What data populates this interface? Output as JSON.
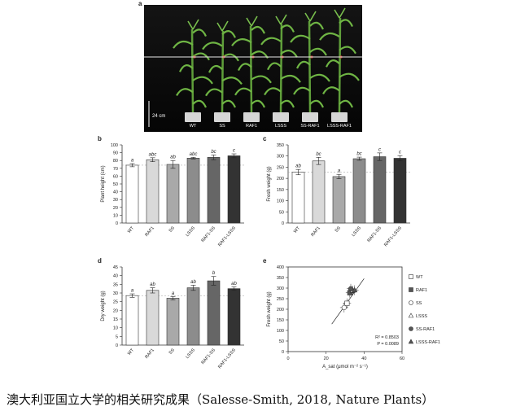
{
  "panel_letters": {
    "a": "a",
    "b": "b",
    "c": "c",
    "d": "d",
    "e": "e"
  },
  "photo": {
    "scale_label": "24 cm",
    "plant_labels": [
      "WT",
      "SS",
      "RAF1",
      "LSSS",
      "SS-RAF1",
      "LSSS-RAF1"
    ]
  },
  "chart_data": [
    {
      "panel": "b",
      "type": "bar",
      "categories": [
        "WT",
        "RAF1",
        "SS",
        "LSSS",
        "RAF1-SS",
        "RAF1-LSSS"
      ],
      "values": [
        74,
        81,
        75,
        83,
        84,
        86
      ],
      "errors": [
        2,
        2.5,
        5,
        1,
        3,
        2.5
      ],
      "letters": [
        "a",
        "abc",
        "ab",
        "abc",
        "bc",
        "c"
      ],
      "ylabel": "Plant height (cm)",
      "ylim": [
        0,
        100
      ],
      "yticks": [
        0,
        10,
        20,
        30,
        40,
        50,
        60,
        70,
        80,
        90,
        100
      ],
      "reference_line": 74,
      "colors": [
        "#ffffff",
        "#d9d9d9",
        "#a9a9a9",
        "#8c8c8c",
        "#666666",
        "#333333"
      ]
    },
    {
      "panel": "c",
      "type": "bar",
      "categories": [
        "WT",
        "RAF1",
        "SS",
        "LSSS",
        "RAF1-SS",
        "RAF1-LSSS"
      ],
      "values": [
        228,
        278,
        208,
        288,
        297,
        290
      ],
      "errors": [
        12,
        16,
        10,
        7,
        17,
        12
      ],
      "letters": [
        "ab",
        "bc",
        "a",
        "bc",
        "c",
        "c"
      ],
      "ylabel": "Fresh weight (g)",
      "ylim": [
        0,
        350
      ],
      "yticks": [
        0,
        50,
        100,
        150,
        200,
        250,
        300,
        350
      ],
      "reference_line": 228,
      "colors": [
        "#ffffff",
        "#d9d9d9",
        "#a9a9a9",
        "#8c8c8c",
        "#666666",
        "#333333"
      ]
    },
    {
      "panel": "d",
      "type": "bar",
      "categories": [
        "WT",
        "RAF1",
        "SS",
        "LSSS",
        "RAF1-SS",
        "RAF1-LSSS"
      ],
      "values": [
        28.5,
        31.5,
        27,
        33,
        37,
        32.5
      ],
      "errors": [
        1,
        1.5,
        1,
        1.5,
        2.5,
        1
      ],
      "letters": [
        "a",
        "ab",
        "a",
        "ab",
        "b",
        "ab"
      ],
      "ylabel": "Dry weight (g)",
      "ylim": [
        0,
        45
      ],
      "yticks": [
        0,
        5,
        10,
        15,
        20,
        25,
        30,
        35,
        40,
        45
      ],
      "reference_line": 28.5,
      "colors": [
        "#ffffff",
        "#d9d9d9",
        "#a9a9a9",
        "#8c8c8c",
        "#666666",
        "#333333"
      ]
    },
    {
      "panel": "e",
      "type": "scatter",
      "xlabel": "A_sat (μmol m⁻² s⁻¹)",
      "ylabel": "Fresh weight (g)",
      "xlim": [
        0,
        60
      ],
      "ylim": [
        0,
        400
      ],
      "xticks": [
        0,
        20,
        40,
        60
      ],
      "yticks": [
        0,
        50,
        100,
        150,
        200,
        250,
        300,
        350,
        400
      ],
      "points": [
        {
          "name": "WT",
          "marker": "square-open",
          "x": 31,
          "y": 228
        },
        {
          "name": "RAF1",
          "marker": "square-filled",
          "x": 32.5,
          "y": 278
        },
        {
          "name": "SS",
          "marker": "circle-open",
          "x": 29.5,
          "y": 208
        },
        {
          "name": "LSSS",
          "marker": "triangle-open",
          "x": 34,
          "y": 288
        },
        {
          "name": "SS-RAF1",
          "marker": "circle-filled",
          "x": 33,
          "y": 297
        },
        {
          "name": "LSSS-RAF1",
          "marker": "triangle-filled",
          "x": 35,
          "y": 290
        }
      ],
      "fit_line": {
        "x": [
          23,
          40
        ],
        "y": [
          130,
          345
        ]
      },
      "stats": {
        "r2": "R² = 0.8503",
        "p": "P = 0.0089"
      },
      "legend": [
        "WT",
        "RAF1",
        "SS",
        "LSSS",
        "SS-RAF1",
        "LSSS-RAF1"
      ],
      "legend_position": "right"
    }
  ],
  "caption": "澳大利亚国立大学的相关研究成果（Salesse-Smith, 2018, Nature Plants）"
}
